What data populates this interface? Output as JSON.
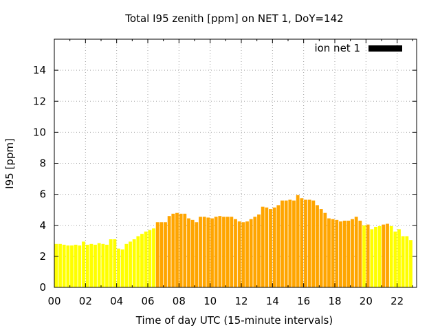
{
  "chart_data": {
    "type": "bar",
    "title": "Total I95 zenith [ppm] on NET 1, DoY=142",
    "xlabel": "Time of day UTC (15-minute intervals)",
    "ylabel": "I95 [ppm]",
    "xlim": [
      0,
      23.25
    ],
    "ylim": [
      0,
      16
    ],
    "xtick_labels": [
      "00",
      "02",
      "04",
      "06",
      "08",
      "10",
      "12",
      "14",
      "16",
      "18",
      "20",
      "22"
    ],
    "ytick_labels": [
      "0",
      "2",
      "4",
      "6",
      "8",
      "10",
      "12",
      "14"
    ],
    "grid": true,
    "legend": {
      "position": "top-right",
      "entries": [
        {
          "label": "ion net 1",
          "color": "#000000"
        }
      ]
    },
    "colors": {
      "low": "#ffff00",
      "high": "#ffa500"
    },
    "interval_hours": 0.25,
    "values": [
      2.8,
      2.8,
      2.75,
      2.7,
      2.7,
      2.75,
      2.7,
      2.95,
      2.75,
      2.8,
      2.75,
      2.85,
      2.8,
      2.75,
      3.1,
      3.1,
      2.5,
      2.45,
      2.8,
      2.95,
      3.1,
      3.3,
      3.45,
      3.6,
      3.7,
      3.8,
      4.2,
      4.2,
      4.2,
      4.6,
      4.75,
      4.8,
      4.75,
      4.75,
      4.45,
      4.35,
      4.2,
      4.55,
      4.55,
      4.5,
      4.45,
      4.55,
      4.6,
      4.55,
      4.55,
      4.55,
      4.4,
      4.25,
      4.2,
      4.25,
      4.4,
      4.55,
      4.7,
      5.2,
      5.15,
      5.05,
      5.15,
      5.3,
      5.6,
      5.6,
      5.65,
      5.6,
      5.95,
      5.75,
      5.65,
      5.65,
      5.6,
      5.3,
      5.05,
      4.8,
      4.45,
      4.4,
      4.35,
      4.25,
      4.3,
      4.3,
      4.4,
      4.55,
      4.3,
      4.0,
      4.05,
      3.75,
      3.9,
      3.95,
      4.05,
      4.1,
      3.95,
      3.6,
      3.75,
      3.3,
      3.3,
      3.05
    ],
    "levels": [
      "low",
      "low",
      "low",
      "low",
      "low",
      "low",
      "low",
      "low",
      "low",
      "low",
      "low",
      "low",
      "low",
      "low",
      "low",
      "low",
      "low",
      "low",
      "low",
      "low",
      "low",
      "low",
      "low",
      "low",
      "low",
      "low",
      "high",
      "high",
      "high",
      "high",
      "high",
      "high",
      "high",
      "high",
      "high",
      "high",
      "high",
      "high",
      "high",
      "high",
      "high",
      "high",
      "high",
      "high",
      "high",
      "high",
      "high",
      "high",
      "high",
      "high",
      "high",
      "high",
      "high",
      "high",
      "high",
      "high",
      "high",
      "high",
      "high",
      "high",
      "high",
      "high",
      "high",
      "high",
      "high",
      "high",
      "high",
      "high",
      "high",
      "high",
      "high",
      "high",
      "high",
      "high",
      "high",
      "high",
      "high",
      "high",
      "high",
      "low",
      "high",
      "low",
      "low",
      "low",
      "high",
      "high",
      "low",
      "low",
      "low",
      "low",
      "low",
      "low"
    ]
  }
}
